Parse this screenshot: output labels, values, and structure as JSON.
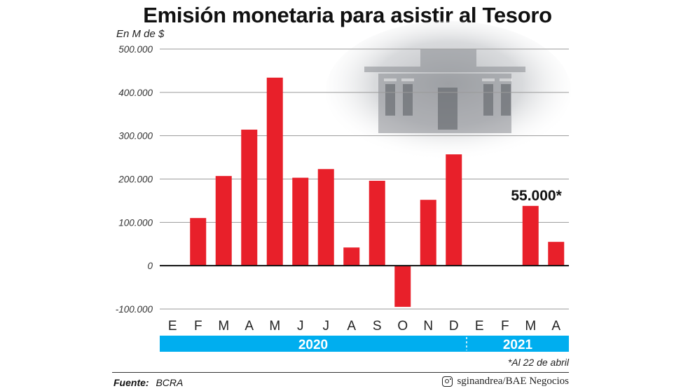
{
  "title": "Emisión monetaria para asistir al Tesoro",
  "unit_label": "En M de $",
  "footnote": "*Al 22 de abril",
  "source": {
    "label": "Fuente:",
    "value": "BCRA"
  },
  "credit": {
    "text": "sginandrea/BAE Negocios",
    "icon": "instagram-icon"
  },
  "colors": {
    "bar": "#e8202a",
    "year_band": "#00aeef",
    "background": "#ffffff"
  },
  "chart_data": {
    "type": "bar",
    "categories": [
      "E",
      "F",
      "M",
      "A",
      "M",
      "J",
      "J",
      "A",
      "S",
      "O",
      "N",
      "D",
      "E",
      "F",
      "M",
      "A"
    ],
    "values": [
      0,
      110000,
      207000,
      314000,
      434000,
      203000,
      223000,
      42000,
      196000,
      -95000,
      152000,
      257000,
      0,
      0,
      138000,
      55000
    ],
    "years": [
      {
        "label": "2020",
        "start": 0,
        "end": 11
      },
      {
        "label": "2021",
        "start": 12,
        "end": 15
      }
    ],
    "yticks": [
      {
        "value": 500000,
        "label": "500.000"
      },
      {
        "value": 400000,
        "label": "400.000"
      },
      {
        "value": 300000,
        "label": "300.000"
      },
      {
        "value": 200000,
        "label": "200.000"
      },
      {
        "value": 100000,
        "label": "100.000"
      },
      {
        "value": 0,
        "label": "0"
      },
      {
        "value": -100000,
        "label": "-100.000"
      }
    ],
    "ylim": [
      -100000,
      500000
    ],
    "annotation": {
      "index": 15,
      "text": "55.000*"
    },
    "grid": true,
    "legend": "none"
  }
}
